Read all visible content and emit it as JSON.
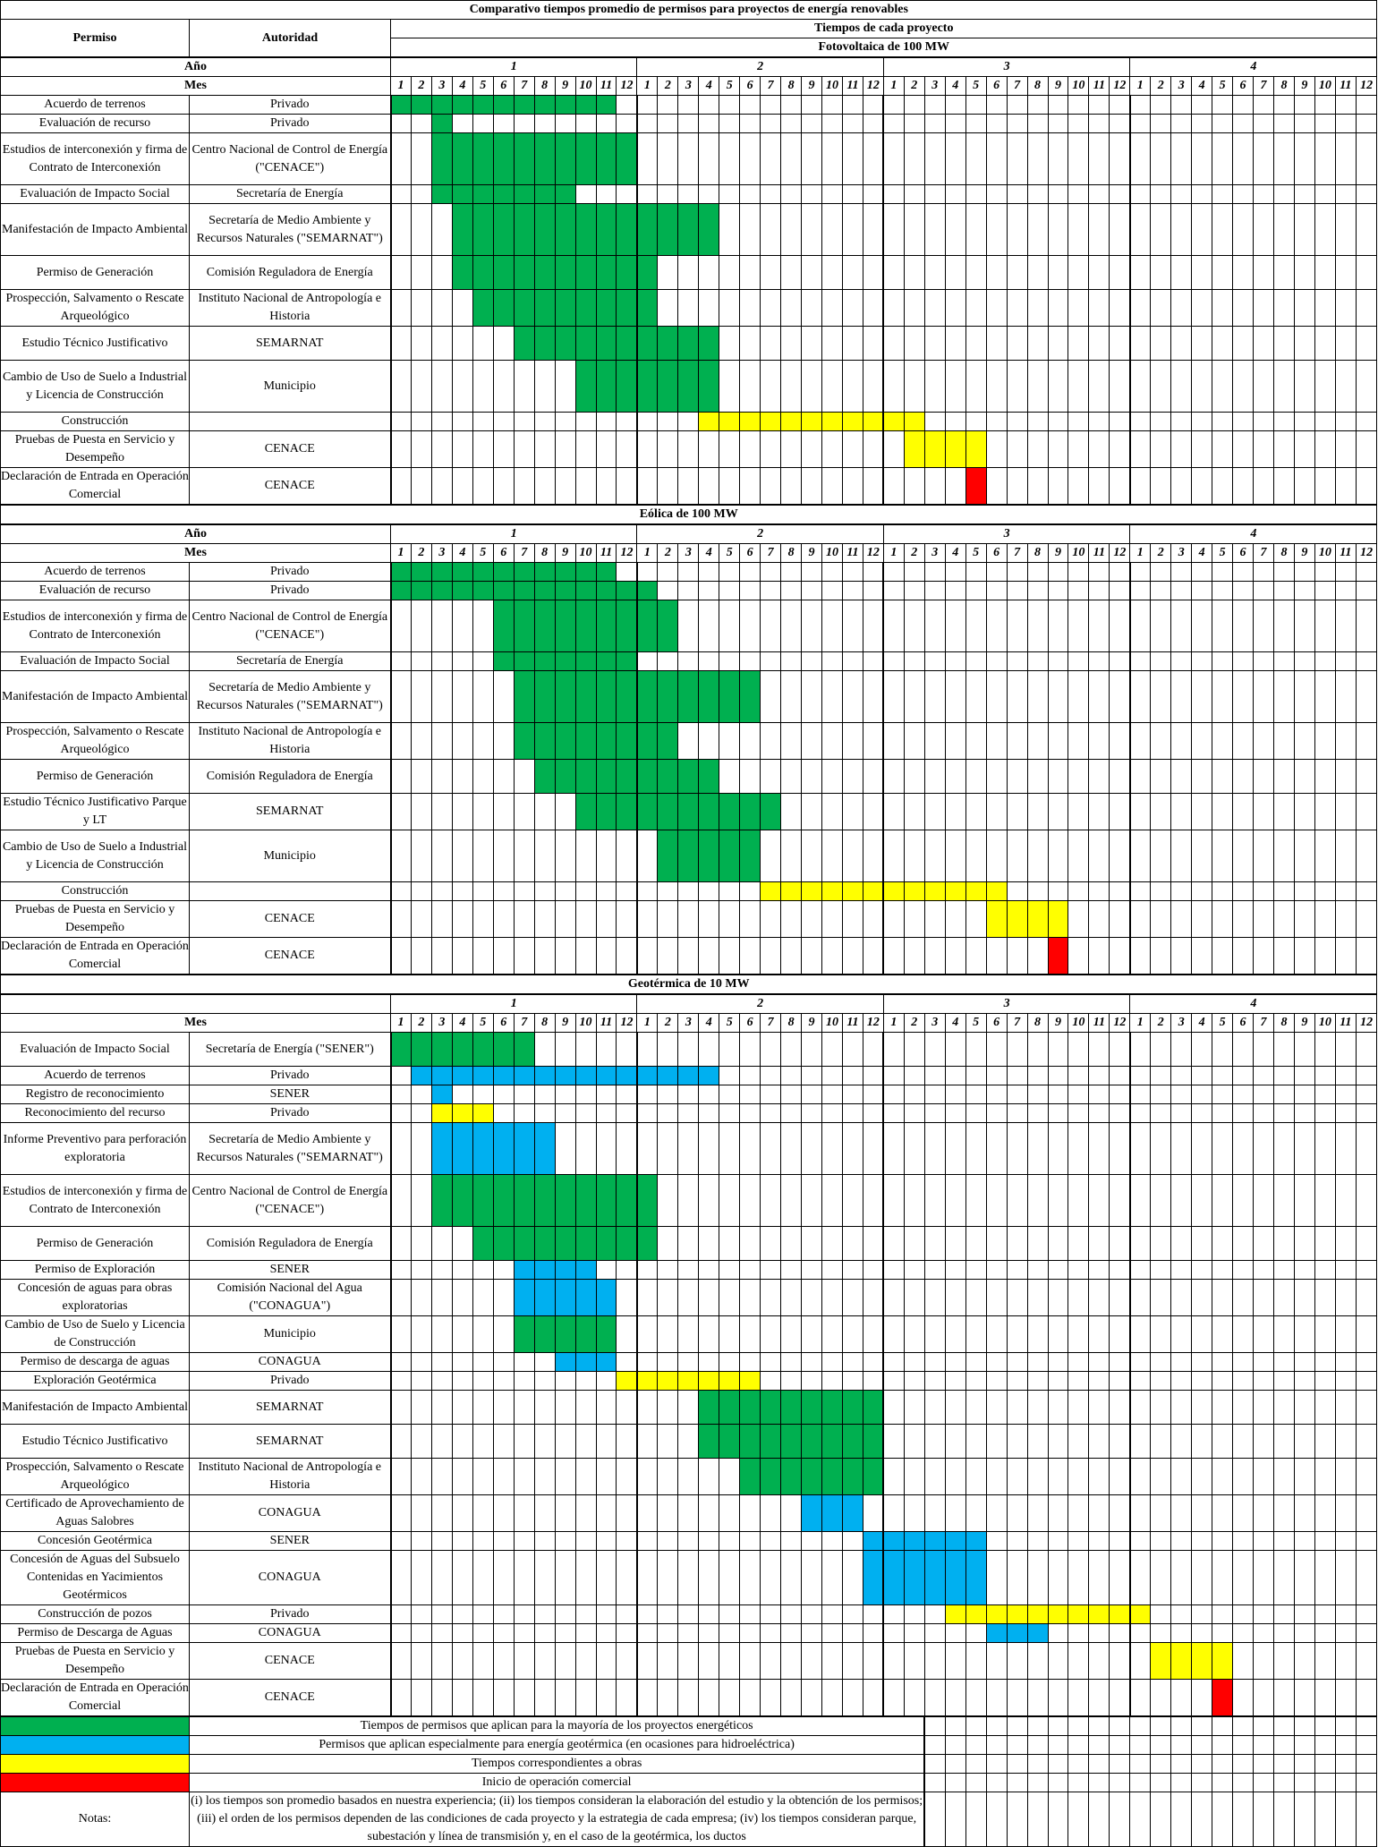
{
  "title": "Comparativo tiempos promedio de permisos para proyectos de energía renovables",
  "headers": {
    "permiso": "Permiso",
    "autoridad": "Autoridad",
    "tiempos": "Tiempos de cada proyecto",
    "anio": "Año",
    "mes": "Mes"
  },
  "years": [
    "1",
    "2",
    "3",
    "4"
  ],
  "months": [
    "1",
    "2",
    "3",
    "4",
    "5",
    "6",
    "7",
    "8",
    "9",
    "10",
    "11",
    "12"
  ],
  "colors": {
    "green": "#00b050",
    "blue": "#00b0f0",
    "yellow": "#ffff00",
    "red": "#ff0000"
  },
  "sections": [
    {
      "title": "Fotovoltaica de 100 MW",
      "rows": [
        {
          "permiso": "Acuerdo de terrenos",
          "autoridad": "Privado",
          "bars": [
            {
              "c": "green",
              "s": 1,
              "e": 11
            }
          ]
        },
        {
          "permiso": "Evaluación de recurso",
          "autoridad": "Privado",
          "bars": [
            {
              "c": "green",
              "s": 3,
              "e": 3
            }
          ]
        },
        {
          "permiso": "Estudios de interconexión y firma de Contrato de Interconexión",
          "autoridad": "Centro Nacional de Control de Energía (\"CENACE\")",
          "bars": [
            {
              "c": "green",
              "s": 3,
              "e": 12
            }
          ]
        },
        {
          "permiso": "Evaluación de Impacto Social",
          "autoridad": "Secretaría de Energía",
          "bars": [
            {
              "c": "green",
              "s": 3,
              "e": 9
            }
          ]
        },
        {
          "permiso": "Manifestación de Impacto Ambiental",
          "autoridad": "Secretaría de Medio Ambiente y Recursos Naturales (\"SEMARNAT\")",
          "bars": [
            {
              "c": "green",
              "s": 4,
              "e": 16
            }
          ]
        },
        {
          "permiso": "Permiso de Generación",
          "autoridad": "Comisión Reguladora de Energía",
          "bars": [
            {
              "c": "green",
              "s": 4,
              "e": 13
            }
          ]
        },
        {
          "permiso": "Prospección, Salvamento o Rescate Arqueológico",
          "autoridad": "Instituto Nacional de Antropología e Historia",
          "bars": [
            {
              "c": "green",
              "s": 5,
              "e": 13
            }
          ]
        },
        {
          "permiso": "Estudio Técnico Justificativo",
          "autoridad": "SEMARNAT",
          "bars": [
            {
              "c": "green",
              "s": 7,
              "e": 16
            }
          ]
        },
        {
          "permiso": "Cambio de Uso de Suelo a Industrial y Licencia de Construcción",
          "autoridad": "Municipio",
          "bars": [
            {
              "c": "green",
              "s": 10,
              "e": 16
            }
          ]
        },
        {
          "permiso": "Construcción",
          "autoridad": "",
          "bars": [
            {
              "c": "yellow",
              "s": 16,
              "e": 26
            }
          ]
        },
        {
          "permiso": "Pruebas de Puesta en Servicio y Desempeño",
          "autoridad": "CENACE",
          "bars": [
            {
              "c": "yellow",
              "s": 26,
              "e": 29
            }
          ]
        },
        {
          "permiso": "Declaración de Entrada en Operación Comercial",
          "autoridad": "CENACE",
          "bars": [
            {
              "c": "red",
              "s": 29,
              "e": 29
            }
          ]
        }
      ]
    },
    {
      "title": "Eólica de 100 MW",
      "rows": [
        {
          "permiso": "Acuerdo de terrenos",
          "autoridad": "Privado",
          "bars": [
            {
              "c": "green",
              "s": 1,
              "e": 11
            }
          ]
        },
        {
          "permiso": "Evaluación de recurso",
          "autoridad": "Privado",
          "bars": [
            {
              "c": "green",
              "s": 1,
              "e": 13
            }
          ]
        },
        {
          "permiso": "Estudios de interconexión y firma de Contrato de Interconexión",
          "autoridad": "Centro Nacional de Control de Energía (\"CENACE\")",
          "bars": [
            {
              "c": "green",
              "s": 6,
              "e": 14
            }
          ]
        },
        {
          "permiso": "Evaluación de Impacto Social",
          "autoridad": "Secretaría de Energía",
          "bars": [
            {
              "c": "green",
              "s": 6,
              "e": 12
            }
          ]
        },
        {
          "permiso": "Manifestación de Impacto Ambiental",
          "autoridad": "Secretaría de Medio Ambiente y Recursos Naturales (\"SEMARNAT\")",
          "bars": [
            {
              "c": "green",
              "s": 7,
              "e": 18
            }
          ]
        },
        {
          "permiso": "Prospección, Salvamento o Rescate Arqueológico",
          "autoridad": "Instituto Nacional de Antropología e Historia",
          "bars": [
            {
              "c": "green",
              "s": 7,
              "e": 14
            }
          ]
        },
        {
          "permiso": "Permiso de Generación",
          "autoridad": "Comisión Reguladora de Energía",
          "bars": [
            {
              "c": "green",
              "s": 8,
              "e": 16
            }
          ]
        },
        {
          "permiso": "Estudio Técnico Justificativo Parque y LT",
          "autoridad": "SEMARNAT",
          "bars": [
            {
              "c": "green",
              "s": 10,
              "e": 19
            }
          ]
        },
        {
          "permiso": "Cambio de Uso de Suelo a Industrial y Licencia de Construcción",
          "autoridad": "Municipio",
          "bars": [
            {
              "c": "green",
              "s": 14,
              "e": 18
            }
          ]
        },
        {
          "permiso": "Construcción",
          "autoridad": "",
          "bars": [
            {
              "c": "yellow",
              "s": 19,
              "e": 30
            }
          ]
        },
        {
          "permiso": "Pruebas de Puesta en Servicio y Desempeño",
          "autoridad": "CENACE",
          "bars": [
            {
              "c": "yellow",
              "s": 30,
              "e": 33
            }
          ]
        },
        {
          "permiso": "Declaración de Entrada en Operación Comercial",
          "autoridad": "CENACE",
          "bars": [
            {
              "c": "red",
              "s": 33,
              "e": 33
            }
          ]
        }
      ]
    },
    {
      "title": "Geotérmica de 10 MW",
      "rows": [
        {
          "permiso": "Evaluación de Impacto Social",
          "autoridad": "Secretaría de Energía (\"SENER\")",
          "bars": [
            {
              "c": "green",
              "s": 1,
              "e": 7
            }
          ]
        },
        {
          "permiso": "Acuerdo de terrenos",
          "autoridad": "Privado",
          "bars": [
            {
              "c": "blue",
              "s": 2,
              "e": 16
            }
          ]
        },
        {
          "permiso": "Registro de reconocimiento",
          "autoridad": "SENER",
          "bars": [
            {
              "c": "blue",
              "s": 3,
              "e": 3
            }
          ]
        },
        {
          "permiso": "Reconocimiento del recurso",
          "autoridad": "Privado",
          "bars": [
            {
              "c": "yellow",
              "s": 3,
              "e": 5
            }
          ]
        },
        {
          "permiso": "Informe Preventivo para perforación exploratoria",
          "autoridad": "Secretaría de Medio Ambiente y Recursos Naturales (\"SEMARNAT\")",
          "bars": [
            {
              "c": "blue",
              "s": 3,
              "e": 8
            }
          ]
        },
        {
          "permiso": "Estudios de interconexión y firma de Contrato de Interconexión",
          "autoridad": "Centro Nacional de Control de Energía (\"CENACE\")",
          "bars": [
            {
              "c": "green",
              "s": 3,
              "e": 13
            }
          ]
        },
        {
          "permiso": "Permiso de Generación",
          "autoridad": "Comisión Reguladora de Energía",
          "bars": [
            {
              "c": "green",
              "s": 5,
              "e": 13
            }
          ]
        },
        {
          "permiso": "Permiso de Exploración",
          "autoridad": "SENER",
          "bars": [
            {
              "c": "blue",
              "s": 7,
              "e": 10
            }
          ]
        },
        {
          "permiso": "Concesión de aguas para obras exploratorias",
          "autoridad": "Comisión Nacional del Agua (\"CONAGUA\")",
          "bars": [
            {
              "c": "blue",
              "s": 7,
              "e": 11
            }
          ]
        },
        {
          "permiso": "Cambio de Uso de Suelo y Licencia de Construcción",
          "autoridad": "Municipio",
          "bars": [
            {
              "c": "green",
              "s": 7,
              "e": 11
            }
          ]
        },
        {
          "permiso": "Permiso de descarga de aguas",
          "autoridad": "CONAGUA",
          "bars": [
            {
              "c": "blue",
              "s": 9,
              "e": 11
            }
          ]
        },
        {
          "permiso": "Exploración Geotérmica",
          "autoridad": "Privado",
          "bars": [
            {
              "c": "yellow",
              "s": 12,
              "e": 18
            }
          ]
        },
        {
          "permiso": "Manifestación de Impacto Ambiental",
          "autoridad": "SEMARNAT",
          "bars": [
            {
              "c": "green",
              "s": 16,
              "e": 24
            }
          ]
        },
        {
          "permiso": "Estudio Técnico Justificativo",
          "autoridad": "SEMARNAT",
          "bars": [
            {
              "c": "green",
              "s": 16,
              "e": 24
            }
          ]
        },
        {
          "permiso": "Prospección, Salvamento o Rescate Arqueológico",
          "autoridad": "Instituto Nacional de Antropología e Historia",
          "bars": [
            {
              "c": "green",
              "s": 18,
              "e": 24
            }
          ]
        },
        {
          "permiso": "Certificado de Aprovechamiento de Aguas Salobres",
          "autoridad": "CONAGUA",
          "bars": [
            {
              "c": "blue",
              "s": 21,
              "e": 23
            }
          ]
        },
        {
          "permiso": "Concesión Geotérmica",
          "autoridad": "SENER",
          "bars": [
            {
              "c": "blue",
              "s": 24,
              "e": 29
            }
          ]
        },
        {
          "permiso": "Concesión de Aguas del Subsuelo Contenidas en Yacimientos Geotérmicos",
          "autoridad": "CONAGUA",
          "bars": [
            {
              "c": "blue",
              "s": 24,
              "e": 29
            }
          ]
        },
        {
          "permiso": "Construcción de pozos",
          "autoridad": "Privado",
          "bars": [
            {
              "c": "yellow",
              "s": 28,
              "e": 37
            }
          ]
        },
        {
          "permiso": "Permiso de Descarga de Aguas",
          "autoridad": "CONAGUA",
          "bars": [
            {
              "c": "blue",
              "s": 30,
              "e": 32
            }
          ]
        },
        {
          "permiso": "Pruebas de Puesta en Servicio y Desempeño",
          "autoridad": "CENACE",
          "bars": [
            {
              "c": "yellow",
              "s": 38,
              "e": 41
            }
          ]
        },
        {
          "permiso": "Declaración de Entrada en Operación Comercial",
          "autoridad": "CENACE",
          "bars": [
            {
              "c": "red",
              "s": 41,
              "e": 41
            }
          ]
        }
      ]
    }
  ],
  "legend": [
    {
      "color": "green",
      "label": "Tiempos de permisos que aplican para la mayoría de los proyectos energéticos"
    },
    {
      "color": "blue",
      "label": "Permisos que aplican especialmente para energía geotérmica (en ocasiones para hidroeléctrica)"
    },
    {
      "color": "yellow",
      "label": "Tiempos correspondientes a obras"
    },
    {
      "color": "red",
      "label": "Inicio de operación comercial"
    }
  ],
  "notes": {
    "label": "Notas:",
    "text": "(i) los tiempos son promedio basados en nuestra experiencia; (ii) los tiempos consideran la elaboración del estudio y la obtención de los permisos; (iii) el orden de los permisos dependen de las condiciones de cada proyecto y la estrategia de cada empresa; (iv) los tiempos consideran parque, subestación y línea de transmisión y, en el caso de la geotérmica, los ductos"
  }
}
